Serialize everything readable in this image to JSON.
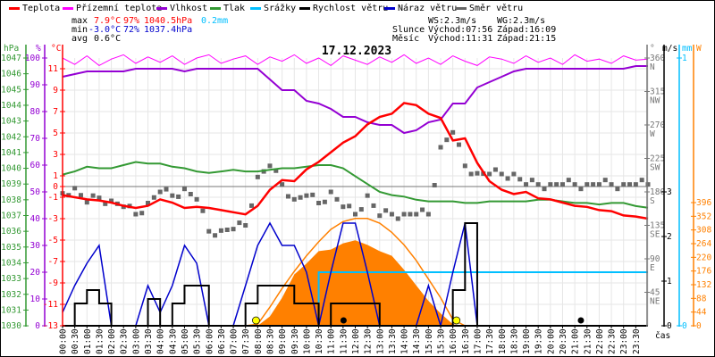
{
  "legend": [
    {
      "label": "Teplota",
      "color": "#ff0000"
    },
    {
      "label": "Přízemní teplota",
      "color": "#ff00ff"
    },
    {
      "label": "Vlhkost",
      "color": "#9400d3"
    },
    {
      "label": "Tlak",
      "color": "#339933"
    },
    {
      "label": "Srážky",
      "color": "#00bfff"
    },
    {
      "label": "Rychlost větru",
      "color": "#000000"
    },
    {
      "label": "Náraz větru",
      "color": "#0000cc"
    },
    {
      "label": "Směr větru",
      "color": "#666666"
    }
  ],
  "stats": {
    "max": {
      "label": "max",
      "temp": "7.9°C",
      "hum": "97%",
      "press": "1040.5hPa",
      "precip": "0.2mm"
    },
    "min": {
      "label": "min",
      "temp": "-3.0°C",
      "hum": "72%",
      "press": "1037.4hPa"
    },
    "avg": {
      "label": "avg",
      "temp": "0.6°C"
    },
    "ws": "WS:2.3m/s",
    "wg": "WG:2.3m/s",
    "sun": {
      "label": "Slunce",
      "rise": "Východ:07:56",
      "set": "Západ:16:09"
    },
    "moon": {
      "label": "Měsíc",
      "rise": "Východ:11:31",
      "set": "Západ:21:15"
    }
  },
  "colors": {
    "solar": "#ff8000",
    "grid": "#e6e6e6",
    "zero": "#777777"
  },
  "chart_data": {
    "type": "line",
    "title": "17.12.2023",
    "xlabel": "čas",
    "x_hours_step": 0.5,
    "x_labels": [
      "00:00",
      "00:30",
      "01:00",
      "01:30",
      "02:00",
      "02:30",
      "03:00",
      "03:30",
      "04:00",
      "04:30",
      "05:00",
      "05:30",
      "06:00",
      "06:30",
      "07:00",
      "07:30",
      "08:00",
      "08:30",
      "09:00",
      "09:30",
      "10:00",
      "10:30",
      "11:00",
      "11:30",
      "12:00",
      "12:30",
      "13:00",
      "13:30",
      "14:00",
      "14:30",
      "15:00",
      "15:30",
      "16:00",
      "16:30",
      "17:00",
      "17:30",
      "18:00",
      "18:30",
      "19:00",
      "19:30",
      "20:00",
      "20:30",
      "21:00",
      "21:30",
      "22:00",
      "22:30",
      "23:00",
      "23:30"
    ],
    "axes": {
      "pressure": {
        "unit": "hPa",
        "range": [
          1030,
          1047
        ],
        "ticks": [
          "1047",
          "1046",
          "1045",
          "1044",
          "1043",
          "1042",
          "1041",
          "1040",
          "1039",
          "1038",
          "1037",
          "1036",
          "1035",
          "1034",
          "1033",
          "1032",
          "1031",
          "1030"
        ]
      },
      "humidity": {
        "unit": "%",
        "range": [
          0,
          100
        ],
        "ticks": [
          "100",
          "90",
          "80",
          "70",
          "60",
          "50",
          "40",
          "30",
          "20",
          "10",
          "0"
        ]
      },
      "temperature": {
        "unit": "°C",
        "range": [
          -13,
          12
        ],
        "ticks": [
          "11",
          "9",
          "7",
          "5",
          "3",
          "1",
          "0",
          "-1",
          "-3",
          "-5",
          "-7",
          "-9",
          "-11",
          "-13"
        ]
      },
      "direction": {
        "unit": "°",
        "range": [
          0,
          360
        ],
        "ticks": [
          [
            "360",
            "N"
          ],
          [
            "315",
            "NW"
          ],
          [
            "270",
            "W"
          ],
          [
            "225",
            "SW"
          ],
          [
            "180",
            "S"
          ],
          [
            "135",
            "SE"
          ],
          [
            "90",
            "E"
          ],
          [
            "45",
            "NE"
          ]
        ]
      },
      "wind": {
        "unit": "m/s",
        "range": [
          0,
          6
        ],
        "ticks": [
          "3",
          "2",
          "1",
          "0"
        ]
      },
      "precip": {
        "unit": "mm",
        "range": [
          0,
          1
        ],
        "ticks": [
          "1",
          "0"
        ]
      },
      "solar": {
        "unit": "W",
        "range": [
          0,
          860
        ],
        "ticks": [
          "396",
          "352",
          "308",
          "264",
          "220",
          "176",
          "132",
          "88",
          "44",
          "0"
        ]
      }
    },
    "series": {
      "temperature": [
        -0.8,
        -1.0,
        -1.2,
        -1.3,
        -1.5,
        -1.8,
        -2.0,
        -1.8,
        -1.2,
        -1.5,
        -2.0,
        -1.9,
        -2.0,
        -2.2,
        -2.4,
        -2.6,
        -1.8,
        -0.3,
        0.6,
        0.5,
        1.6,
        2.3,
        3.2,
        4.1,
        4.7,
        5.8,
        6.5,
        6.8,
        7.8,
        7.6,
        6.8,
        6.4,
        4.3,
        4.5,
        2.2,
        0.5,
        -0.3,
        -0.7,
        -0.5,
        -1.1,
        -1.2,
        -1.5,
        -1.8,
        -1.9,
        -2.2,
        -2.3,
        -2.7,
        -2.8,
        -3.0
      ],
      "apparent_temperature": [
        12.0,
        11.4,
        12.2,
        11.3,
        11.9,
        12.3,
        11.5,
        12.1,
        11.6,
        12.2,
        11.4,
        12.0,
        12.3,
        11.5,
        11.9,
        12.2,
        11.4,
        12.1,
        11.7,
        12.3,
        11.5,
        12.0,
        11.3,
        12.2,
        11.8,
        11.4,
        12.1,
        11.6,
        12.3,
        11.5,
        12.0,
        11.4,
        12.2,
        11.7,
        11.3,
        12.1,
        11.9,
        11.5,
        12.2,
        11.6,
        12.0,
        11.4,
        12.3,
        11.7,
        11.9,
        11.5,
        12.2,
        11.8,
        11.9
      ],
      "humidity": [
        93,
        94,
        95,
        95,
        95,
        95,
        96,
        96,
        96,
        96,
        95,
        96,
        96,
        96,
        96,
        96,
        96,
        92,
        88,
        88,
        84,
        83,
        81,
        78,
        78,
        76,
        75,
        75,
        72,
        73,
        76,
        77,
        83,
        83,
        89,
        91,
        93,
        95,
        96,
        96,
        96,
        96,
        96,
        96,
        96,
        96,
        96,
        97,
        97
      ],
      "pressure": [
        1039.6,
        1039.8,
        1040.1,
        1040.0,
        1040.0,
        1040.2,
        1040.4,
        1040.3,
        1040.3,
        1040.1,
        1040.0,
        1039.8,
        1039.7,
        1039.8,
        1039.9,
        1039.8,
        1039.8,
        1039.9,
        1040.0,
        1040.0,
        1040.1,
        1040.2,
        1040.2,
        1040.0,
        1039.5,
        1039.0,
        1038.5,
        1038.3,
        1038.2,
        1038.0,
        1037.9,
        1037.9,
        1037.9,
        1037.8,
        1037.8,
        1037.9,
        1037.9,
        1037.9,
        1037.9,
        1038.0,
        1038.0,
        1037.9,
        1037.8,
        1037.8,
        1037.7,
        1037.8,
        1037.8,
        1037.6,
        1037.5
      ],
      "precipitation_cumulative": [
        0,
        0,
        0,
        0,
        0,
        0,
        0,
        0,
        0,
        0,
        0,
        0,
        0,
        0,
        0,
        0,
        0,
        0,
        0,
        0,
        0,
        0.2,
        0.2,
        0.2,
        0.2,
        0.2,
        0.2,
        0.2,
        0.2,
        0.2,
        0.2,
        0.2,
        0.2,
        0.2,
        0.2,
        0.2,
        0.2,
        0.2,
        0.2,
        0.2,
        0.2,
        0.2,
        0.2,
        0.2,
        0.2,
        0.2,
        0.2,
        0.2,
        0.2
      ],
      "wind_speed": [
        0,
        0.5,
        0.8,
        0.5,
        0,
        0,
        0,
        0.6,
        0,
        0.5,
        0.9,
        0.9,
        0,
        0,
        0,
        0.5,
        0.9,
        0.9,
        0.9,
        0.5,
        0.5,
        0,
        0.5,
        0.5,
        0.5,
        0.5,
        0,
        0,
        0,
        0,
        0,
        0,
        0.8,
        2.3,
        0,
        0,
        0,
        0,
        0,
        0,
        0,
        0,
        0,
        0,
        0,
        0,
        0,
        0,
        0
      ],
      "wind_gust": [
        0.3,
        0.9,
        1.4,
        1.8,
        0,
        0,
        0,
        0.9,
        0.3,
        0.9,
        1.8,
        1.4,
        0,
        0,
        0,
        0.9,
        1.8,
        2.3,
        1.8,
        1.8,
        1.2,
        0,
        1.2,
        2.3,
        2.3,
        1.2,
        0,
        0,
        0,
        0,
        0.9,
        0,
        1.2,
        2.3,
        0,
        0,
        0,
        0,
        0,
        0,
        0,
        0,
        0,
        0,
        0,
        0,
        0,
        0,
        0
      ],
      "wind_direction": [
        178,
        185,
        166,
        172,
        168,
        160,
        150,
        165,
        180,
        175,
        184,
        170,
        127,
        128,
        130,
        135,
        200,
        215,
        190,
        170,
        175,
        165,
        180,
        160,
        150,
        175,
        148,
        150,
        150,
        150,
        150,
        240,
        260,
        215,
        205,
        204,
        204,
        204,
        190,
        190,
        190,
        190,
        190,
        190,
        190,
        190,
        190,
        190,
        190
      ],
      "solar_radiation": [
        0,
        0,
        0,
        0,
        0,
        0,
        0,
        0,
        0,
        0,
        0,
        0,
        0,
        0,
        0,
        0,
        0,
        30,
        90,
        165,
        200,
        240,
        245,
        265,
        275,
        260,
        240,
        225,
        180,
        130,
        80,
        40,
        5,
        0,
        0,
        0,
        0,
        0,
        0,
        0,
        0,
        0,
        0,
        0,
        0,
        0,
        0,
        0,
        0
      ],
      "solar_theoretical": [
        0,
        0,
        0,
        0,
        0,
        0,
        0,
        0,
        0,
        0,
        0,
        0,
        0,
        0,
        0,
        0,
        5,
        60,
        120,
        175,
        225,
        270,
        310,
        335,
        345,
        345,
        330,
        300,
        260,
        210,
        150,
        90,
        20,
        0,
        0,
        0,
        0,
        0,
        0,
        0,
        0,
        0,
        0,
        0,
        0,
        0,
        0,
        0,
        0
      ]
    },
    "markers": {
      "sunrise_h": 7.93,
      "sunset_h": 16.15,
      "moonrise_h": 11.52,
      "moonset_h": 21.25
    },
    "grid": true
  }
}
